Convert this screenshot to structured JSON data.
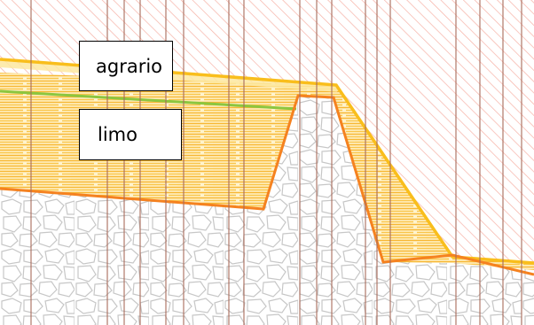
{
  "labels": {
    "agrario": "agrario",
    "limo": "limo"
  },
  "colors": {
    "agrario_fill": "#fde8a0",
    "agrario_line": "#f9be1c",
    "limo_hatch": "#f4a91a",
    "limo_boundary": "#f58220",
    "interface_line": "#8cc63f",
    "gravel_outline": "#c4c4c4",
    "red_hatch": "#f6b2a6",
    "grid_line": "#a86b5b"
  }
}
